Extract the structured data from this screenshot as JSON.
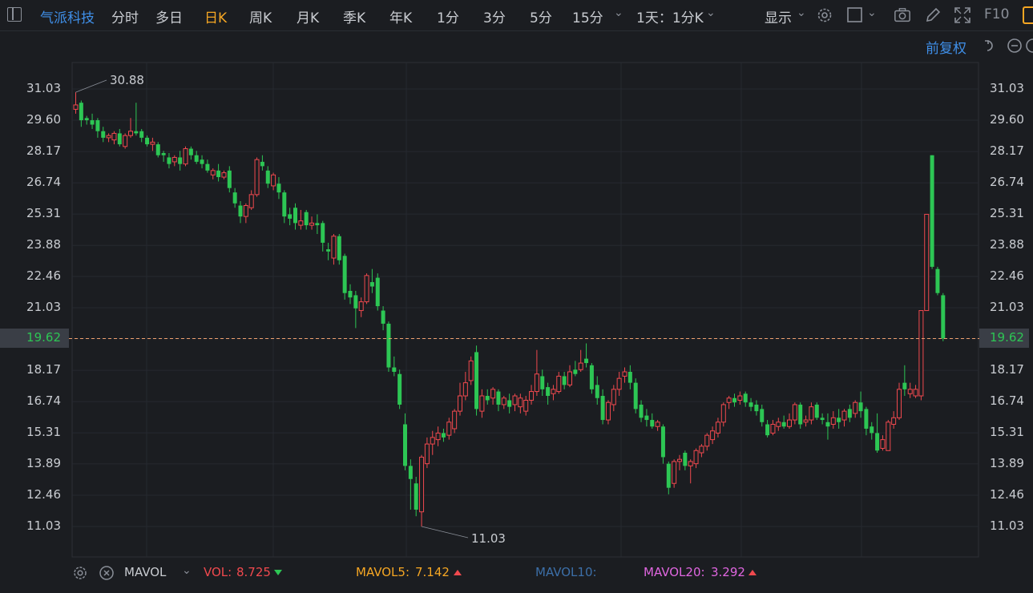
{
  "header": {
    "stock_name": "气派科技",
    "periods": [
      "分时",
      "多日",
      "日K",
      "周K",
      "月K",
      "季K",
      "年K",
      "1分",
      "3分",
      "5分",
      "15分"
    ],
    "active_period": "日K",
    "combo_period": "1天：1分K",
    "display_label": "显示",
    "fuquan_label": "前复权",
    "f10_label": "F10"
  },
  "axis": {
    "y_ticks": [
      "31.03",
      "29.60",
      "28.17",
      "26.74",
      "25.31",
      "23.88",
      "22.46",
      "21.03",
      "19.62",
      "18.17",
      "16.74",
      "15.31",
      "13.89",
      "12.46",
      "11.03"
    ],
    "current_price": "19.62"
  },
  "annotations": {
    "high": "30.88",
    "low": "11.03"
  },
  "indicator": {
    "name": "MAVOL",
    "vol_label": "VOL:",
    "vol_value": "8.725",
    "mavol5_label": "MAVOL5:",
    "mavol5_value": "7.142",
    "mavol10_label": "MAVOL10:",
    "mavol20_label": "MAVOL20:",
    "mavol20_value": "3.292"
  },
  "colors": {
    "up": "#f0494e",
    "down": "#2dc654",
    "accent_blue": "#3f8fe8",
    "active_orange": "#f5a623",
    "mavol5": "#f5a623",
    "mavol10": "#3c6fa8",
    "mavol20": "#e066e0",
    "price_line": "#f0a070"
  },
  "chart_data": {
    "type": "candlestick",
    "y_range": [
      10.4,
      32.1
    ],
    "candles": [
      {
        "o": 30.1,
        "c": 30.3,
        "h": 30.88,
        "l": 29.9
      },
      {
        "o": 30.4,
        "c": 29.6,
        "h": 30.5,
        "l": 29.3
      },
      {
        "o": 29.7,
        "c": 29.6,
        "h": 29.8,
        "l": 29.4
      },
      {
        "o": 29.6,
        "c": 29.4,
        "h": 29.9,
        "l": 29.2
      },
      {
        "o": 29.6,
        "c": 29.1,
        "h": 29.7,
        "l": 28.8
      },
      {
        "o": 29.1,
        "c": 28.8,
        "h": 29.3,
        "l": 28.6
      },
      {
        "o": 28.8,
        "c": 28.9,
        "h": 29.0,
        "l": 28.6
      },
      {
        "o": 28.7,
        "c": 29.0,
        "h": 29.1,
        "l": 28.5
      },
      {
        "o": 29.0,
        "c": 28.5,
        "h": 29.2,
        "l": 28.4
      },
      {
        "o": 28.4,
        "c": 28.9,
        "h": 29.0,
        "l": 28.3
      },
      {
        "o": 28.9,
        "c": 29.1,
        "h": 29.7,
        "l": 28.8
      },
      {
        "o": 29.1,
        "c": 29.0,
        "h": 30.4,
        "l": 28.9
      },
      {
        "o": 29.1,
        "c": 28.8,
        "h": 29.2,
        "l": 28.6
      },
      {
        "o": 28.8,
        "c": 28.5,
        "h": 28.9,
        "l": 28.4
      },
      {
        "o": 28.5,
        "c": 28.6,
        "h": 28.8,
        "l": 28.2
      },
      {
        "o": 28.5,
        "c": 28.0,
        "h": 28.6,
        "l": 27.9
      },
      {
        "o": 28.1,
        "c": 28.0,
        "h": 28.2,
        "l": 27.7
      },
      {
        "o": 27.9,
        "c": 27.6,
        "h": 28.1,
        "l": 27.4
      },
      {
        "o": 27.7,
        "c": 27.9,
        "h": 28.0,
        "l": 27.5
      },
      {
        "o": 27.9,
        "c": 27.6,
        "h": 28.2,
        "l": 27.3
      },
      {
        "o": 27.6,
        "c": 28.3,
        "h": 28.4,
        "l": 27.5
      },
      {
        "o": 28.3,
        "c": 28.0,
        "h": 28.4,
        "l": 27.8
      },
      {
        "o": 28.0,
        "c": 27.7,
        "h": 28.2,
        "l": 27.6
      },
      {
        "o": 27.8,
        "c": 27.6,
        "h": 28.0,
        "l": 27.4
      },
      {
        "o": 27.6,
        "c": 27.3,
        "h": 27.8,
        "l": 27.2
      },
      {
        "o": 27.1,
        "c": 27.3,
        "h": 27.4,
        "l": 26.9
      },
      {
        "o": 27.3,
        "c": 27.0,
        "h": 27.6,
        "l": 26.8
      },
      {
        "o": 27.0,
        "c": 27.2,
        "h": 27.3,
        "l": 26.9
      },
      {
        "o": 27.3,
        "c": 26.5,
        "h": 27.5,
        "l": 26.3
      },
      {
        "o": 26.3,
        "c": 25.8,
        "h": 26.5,
        "l": 25.6
      },
      {
        "o": 25.7,
        "c": 25.2,
        "h": 25.9,
        "l": 24.9
      },
      {
        "o": 25.2,
        "c": 25.7,
        "h": 25.8,
        "l": 24.9
      },
      {
        "o": 25.6,
        "c": 26.2,
        "h": 26.4,
        "l": 25.5
      },
      {
        "o": 26.2,
        "c": 27.8,
        "h": 27.9,
        "l": 26.1
      },
      {
        "o": 27.7,
        "c": 27.5,
        "h": 28.0,
        "l": 27.3
      },
      {
        "o": 27.3,
        "c": 26.7,
        "h": 27.5,
        "l": 26.5
      },
      {
        "o": 26.6,
        "c": 27.1,
        "h": 27.2,
        "l": 26.4
      },
      {
        "o": 26.7,
        "c": 26.3,
        "h": 27.0,
        "l": 26.0
      },
      {
        "o": 26.3,
        "c": 25.2,
        "h": 26.4,
        "l": 24.9
      },
      {
        "o": 25.3,
        "c": 25.1,
        "h": 25.6,
        "l": 24.8
      },
      {
        "o": 25.6,
        "c": 24.9,
        "h": 25.8,
        "l": 24.6
      },
      {
        "o": 24.8,
        "c": 25.0,
        "h": 25.5,
        "l": 24.6
      },
      {
        "o": 25.4,
        "c": 24.8,
        "h": 25.5,
        "l": 24.6
      },
      {
        "o": 24.8,
        "c": 24.9,
        "h": 25.2,
        "l": 24.6
      },
      {
        "o": 24.9,
        "c": 24.8,
        "h": 25.3,
        "l": 24.4
      },
      {
        "o": 24.9,
        "c": 24.0,
        "h": 25.0,
        "l": 23.6
      },
      {
        "o": 23.7,
        "c": 23.6,
        "h": 24.0,
        "l": 23.2
      },
      {
        "o": 23.3,
        "c": 24.3,
        "h": 24.4,
        "l": 23.0
      },
      {
        "o": 24.3,
        "c": 23.2,
        "h": 24.4,
        "l": 23.0
      },
      {
        "o": 23.4,
        "c": 21.7,
        "h": 23.5,
        "l": 21.4
      },
      {
        "o": 21.8,
        "c": 21.5,
        "h": 22.1,
        "l": 21.2
      },
      {
        "o": 21.6,
        "c": 21.0,
        "h": 21.8,
        "l": 20.1
      },
      {
        "o": 20.9,
        "c": 21.3,
        "h": 21.5,
        "l": 20.6
      },
      {
        "o": 21.3,
        "c": 22.5,
        "h": 22.6,
        "l": 21.2
      },
      {
        "o": 22.2,
        "c": 22.0,
        "h": 22.8,
        "l": 21.7
      },
      {
        "o": 22.4,
        "c": 21.1,
        "h": 22.6,
        "l": 20.9
      },
      {
        "o": 20.9,
        "c": 20.3,
        "h": 21.1,
        "l": 20.0
      },
      {
        "o": 20.3,
        "c": 18.3,
        "h": 20.4,
        "l": 18.1
      },
      {
        "o": 18.3,
        "c": 18.1,
        "h": 18.8,
        "l": 17.9
      },
      {
        "o": 18.0,
        "c": 16.6,
        "h": 18.2,
        "l": 16.4
      },
      {
        "o": 15.7,
        "c": 13.8,
        "h": 16.2,
        "l": 13.6
      },
      {
        "o": 13.8,
        "c": 13.2,
        "h": 14.1,
        "l": 11.8
      },
      {
        "o": 13.0,
        "c": 11.8,
        "h": 13.3,
        "l": 11.5
      },
      {
        "o": 11.7,
        "c": 14.2,
        "h": 14.3,
        "l": 11.03
      },
      {
        "o": 13.9,
        "c": 14.8,
        "h": 15.1,
        "l": 13.7
      },
      {
        "o": 14.8,
        "c": 15.1,
        "h": 15.4,
        "l": 14.3
      },
      {
        "o": 15.0,
        "c": 15.3,
        "h": 15.6,
        "l": 14.7
      },
      {
        "o": 15.3,
        "c": 15.1,
        "h": 15.5,
        "l": 14.9
      },
      {
        "o": 15.2,
        "c": 15.8,
        "h": 16.0,
        "l": 15.0
      },
      {
        "o": 15.5,
        "c": 16.3,
        "h": 16.4,
        "l": 15.3
      },
      {
        "o": 16.3,
        "c": 17.0,
        "h": 17.6,
        "l": 16.1
      },
      {
        "o": 17.0,
        "c": 17.6,
        "h": 18.1,
        "l": 16.8
      },
      {
        "o": 17.7,
        "c": 18.6,
        "h": 18.8,
        "l": 17.5
      },
      {
        "o": 19.0,
        "c": 16.4,
        "h": 19.3,
        "l": 16.1
      },
      {
        "o": 16.3,
        "c": 17.0,
        "h": 17.3,
        "l": 16.0
      },
      {
        "o": 17.0,
        "c": 16.8,
        "h": 17.3,
        "l": 16.6
      },
      {
        "o": 16.9,
        "c": 17.3,
        "h": 17.4,
        "l": 16.6
      },
      {
        "o": 17.2,
        "c": 16.6,
        "h": 17.3,
        "l": 16.3
      },
      {
        "o": 16.6,
        "c": 16.9,
        "h": 17.0,
        "l": 16.4
      },
      {
        "o": 16.8,
        "c": 16.5,
        "h": 17.1,
        "l": 16.2
      },
      {
        "o": 16.6,
        "c": 17.0,
        "h": 17.1,
        "l": 16.3
      },
      {
        "o": 16.5,
        "c": 16.9,
        "h": 17.1,
        "l": 16.2
      },
      {
        "o": 16.3,
        "c": 16.8,
        "h": 17.0,
        "l": 16.1
      },
      {
        "o": 16.8,
        "c": 17.2,
        "h": 17.5,
        "l": 16.6
      },
      {
        "o": 17.2,
        "c": 18.0,
        "h": 19.1,
        "l": 17.0
      },
      {
        "o": 17.9,
        "c": 17.3,
        "h": 18.2,
        "l": 17.0
      },
      {
        "o": 17.4,
        "c": 17.0,
        "h": 17.6,
        "l": 16.6
      },
      {
        "o": 17.1,
        "c": 17.3,
        "h": 17.5,
        "l": 16.8
      },
      {
        "o": 17.2,
        "c": 17.9,
        "h": 18.1,
        "l": 17.1
      },
      {
        "o": 17.9,
        "c": 17.5,
        "h": 18.1,
        "l": 17.3
      },
      {
        "o": 17.5,
        "c": 18.1,
        "h": 18.4,
        "l": 17.4
      },
      {
        "o": 18.2,
        "c": 18.0,
        "h": 18.6,
        "l": 17.9
      },
      {
        "o": 18.2,
        "c": 18.5,
        "h": 19.1,
        "l": 18.1
      },
      {
        "o": 18.7,
        "c": 18.5,
        "h": 19.4,
        "l": 18.3
      },
      {
        "o": 18.4,
        "c": 17.3,
        "h": 18.5,
        "l": 17.1
      },
      {
        "o": 17.5,
        "c": 16.9,
        "h": 17.9,
        "l": 16.6
      },
      {
        "o": 17.0,
        "c": 15.9,
        "h": 17.3,
        "l": 15.7
      },
      {
        "o": 15.9,
        "c": 16.7,
        "h": 16.8,
        "l": 15.7
      },
      {
        "o": 16.6,
        "c": 17.3,
        "h": 17.5,
        "l": 16.3
      },
      {
        "o": 17.3,
        "c": 17.8,
        "h": 18.1,
        "l": 17.0
      },
      {
        "o": 17.9,
        "c": 18.1,
        "h": 18.3,
        "l": 17.6
      },
      {
        "o": 18.1,
        "c": 17.6,
        "h": 18.4,
        "l": 17.3
      },
      {
        "o": 17.6,
        "c": 16.4,
        "h": 17.8,
        "l": 16.2
      },
      {
        "o": 16.6,
        "c": 16.0,
        "h": 16.8,
        "l": 15.8
      },
      {
        "o": 16.1,
        "c": 15.9,
        "h": 16.4,
        "l": 15.6
      },
      {
        "o": 15.9,
        "c": 15.6,
        "h": 16.2,
        "l": 15.5
      },
      {
        "o": 15.6,
        "c": 15.8,
        "h": 15.9,
        "l": 15.4
      },
      {
        "o": 15.6,
        "c": 14.2,
        "h": 15.7,
        "l": 13.9
      },
      {
        "o": 13.9,
        "c": 12.8,
        "h": 14.0,
        "l": 12.5
      },
      {
        "o": 13.0,
        "c": 14.0,
        "h": 14.1,
        "l": 12.8
      },
      {
        "o": 14.0,
        "c": 14.1,
        "h": 14.3,
        "l": 13.6
      },
      {
        "o": 14.4,
        "c": 13.8,
        "h": 14.5,
        "l": 13.6
      },
      {
        "o": 13.8,
        "c": 14.0,
        "h": 14.1,
        "l": 13.0
      },
      {
        "o": 13.9,
        "c": 14.5,
        "h": 14.6,
        "l": 13.7
      },
      {
        "o": 14.4,
        "c": 14.7,
        "h": 14.8,
        "l": 14.2
      },
      {
        "o": 14.7,
        "c": 15.2,
        "h": 15.3,
        "l": 14.5
      },
      {
        "o": 15.0,
        "c": 15.4,
        "h": 15.6,
        "l": 14.8
      },
      {
        "o": 15.3,
        "c": 15.8,
        "h": 16.0,
        "l": 15.1
      },
      {
        "o": 15.8,
        "c": 16.6,
        "h": 16.7,
        "l": 15.6
      },
      {
        "o": 16.7,
        "c": 16.9,
        "h": 17.0,
        "l": 16.4
      },
      {
        "o": 16.9,
        "c": 16.7,
        "h": 17.1,
        "l": 16.5
      },
      {
        "o": 16.8,
        "c": 17.0,
        "h": 17.2,
        "l": 16.6
      },
      {
        "o": 17.1,
        "c": 16.7,
        "h": 17.2,
        "l": 16.5
      },
      {
        "o": 16.7,
        "c": 16.5,
        "h": 16.9,
        "l": 16.3
      },
      {
        "o": 16.6,
        "c": 16.3,
        "h": 16.8,
        "l": 16.1
      },
      {
        "o": 16.4,
        "c": 15.8,
        "h": 16.6,
        "l": 15.6
      },
      {
        "o": 15.7,
        "c": 15.2,
        "h": 15.9,
        "l": 15.1
      },
      {
        "o": 15.3,
        "c": 15.7,
        "h": 15.9,
        "l": 15.2
      },
      {
        "o": 15.6,
        "c": 15.8,
        "h": 16.0,
        "l": 15.4
      },
      {
        "o": 15.8,
        "c": 15.6,
        "h": 16.1,
        "l": 15.5
      },
      {
        "o": 15.6,
        "c": 15.9,
        "h": 16.2,
        "l": 15.5
      },
      {
        "o": 15.9,
        "c": 16.6,
        "h": 16.7,
        "l": 15.7
      },
      {
        "o": 16.6,
        "c": 15.7,
        "h": 16.7,
        "l": 15.5
      },
      {
        "o": 15.8,
        "c": 15.9,
        "h": 16.1,
        "l": 15.6
      },
      {
        "o": 15.9,
        "c": 16.5,
        "h": 16.7,
        "l": 15.7
      },
      {
        "o": 16.6,
        "c": 16.0,
        "h": 16.7,
        "l": 15.9
      },
      {
        "o": 16.0,
        "c": 15.9,
        "h": 16.2,
        "l": 15.7
      },
      {
        "o": 15.8,
        "c": 15.6,
        "h": 16.2,
        "l": 15.0
      },
      {
        "o": 15.7,
        "c": 16.0,
        "h": 16.3,
        "l": 15.5
      },
      {
        "o": 16.0,
        "c": 15.8,
        "h": 16.4,
        "l": 15.5
      },
      {
        "o": 15.9,
        "c": 16.3,
        "h": 16.4,
        "l": 15.6
      },
      {
        "o": 16.4,
        "c": 16.0,
        "h": 16.6,
        "l": 15.8
      },
      {
        "o": 16.2,
        "c": 16.7,
        "h": 16.8,
        "l": 16.0
      },
      {
        "o": 16.7,
        "c": 16.3,
        "h": 17.2,
        "l": 16.0
      },
      {
        "o": 16.4,
        "c": 15.5,
        "h": 16.5,
        "l": 15.2
      },
      {
        "o": 15.6,
        "c": 15.3,
        "h": 15.8,
        "l": 15.0
      },
      {
        "o": 15.3,
        "c": 14.5,
        "h": 16.2,
        "l": 14.4
      },
      {
        "o": 14.6,
        "c": 15.0,
        "h": 15.2,
        "l": 14.5
      },
      {
        "o": 14.5,
        "c": 15.8,
        "h": 15.9,
        "l": 14.5
      },
      {
        "o": 15.7,
        "c": 16.0,
        "h": 16.3,
        "l": 15.5
      },
      {
        "o": 16.0,
        "c": 17.3,
        "h": 17.6,
        "l": 15.9
      },
      {
        "o": 17.6,
        "c": 17.3,
        "h": 18.4,
        "l": 17.0
      },
      {
        "o": 17.1,
        "c": 17.3,
        "h": 17.6,
        "l": 16.9
      },
      {
        "o": 17.0,
        "c": 17.3,
        "h": 17.5,
        "l": 16.9
      },
      {
        "o": 17.0,
        "c": 20.9,
        "h": 20.9,
        "l": 16.8
      },
      {
        "o": 20.9,
        "c": 25.3,
        "h": 25.3,
        "l": 20.9
      },
      {
        "o": 28.0,
        "c": 22.9,
        "h": 28.0,
        "l": 22.8
      },
      {
        "o": 22.8,
        "c": 21.7,
        "h": 22.9,
        "l": 21.6
      },
      {
        "o": 21.6,
        "c": 19.62,
        "h": 21.7,
        "l": 19.5
      }
    ]
  }
}
